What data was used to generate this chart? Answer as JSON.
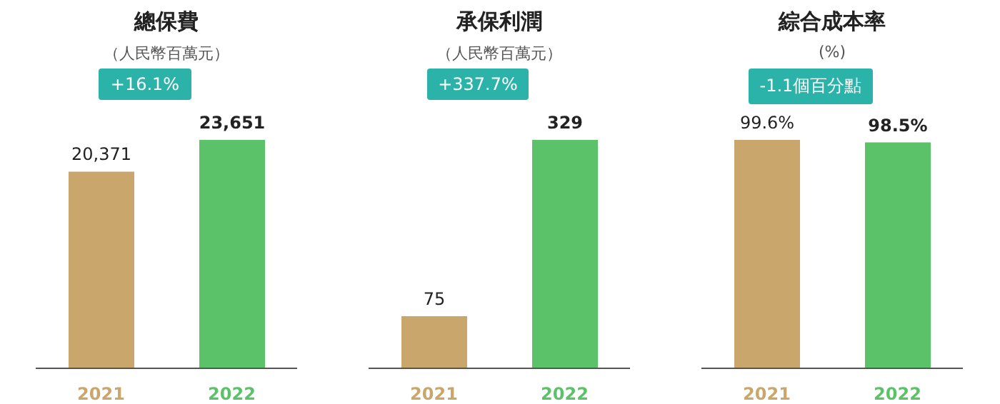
{
  "chart_data": [
    {
      "type": "bar",
      "title": "總保費",
      "subtitle": "（人民幣百萬元）",
      "categories": [
        "2021",
        "2022"
      ],
      "values": [
        20371,
        23651
      ],
      "value_labels": [
        "20,371",
        "23,651"
      ],
      "colors": [
        "#c9a66b",
        "#5cc26a"
      ],
      "annotations": [
        "+16.1%"
      ]
    },
    {
      "type": "bar",
      "title": "承保利潤",
      "subtitle": "（人民幣百萬元）",
      "categories": [
        "2021",
        "2022"
      ],
      "values": [
        75,
        329
      ],
      "value_labels": [
        "75",
        "329"
      ],
      "colors": [
        "#c9a66b",
        "#5cc26a"
      ],
      "annotations": [
        "+337.7%"
      ]
    },
    {
      "type": "bar",
      "title": "綜合成本率",
      "subtitle": "(%)",
      "categories": [
        "2021",
        "2022"
      ],
      "values": [
        99.6,
        98.5
      ],
      "value_labels": [
        "99.6%",
        "98.5%"
      ],
      "colors": [
        "#c9a66b",
        "#5cc26a"
      ],
      "annotations": [
        "-1.1個百分點"
      ]
    }
  ]
}
